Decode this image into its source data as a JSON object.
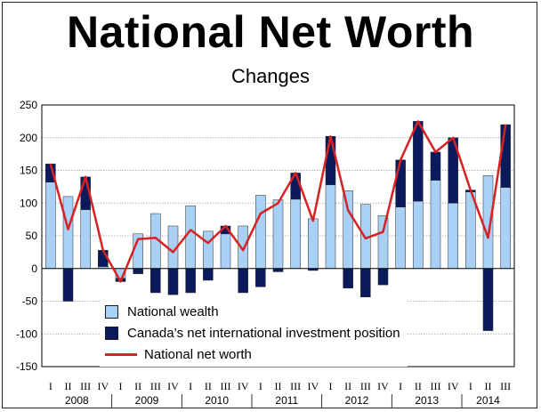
{
  "page": {
    "title": "National Net Worth",
    "subtitle": "Changes"
  },
  "colors": {
    "wealth": "#a9d0f5",
    "niip": "#0a1a5c",
    "net_worth_line": "#d62222",
    "grid": "#9a9a9a",
    "axis": "#000000"
  },
  "chart_data": {
    "type": "bar",
    "stacked": true,
    "ylim": [
      -150,
      250
    ],
    "yticks": [
      -150,
      -100,
      -50,
      0,
      50,
      100,
      150,
      200,
      250
    ],
    "grid": true,
    "legend_position": "bottom-left",
    "x": [
      "2008 I",
      "2008 II",
      "2008 III",
      "2008 IV",
      "2009 I",
      "2009 II",
      "2009 III",
      "2009 IV",
      "2010 I",
      "2010 II",
      "2010 III",
      "2010 IV",
      "2011 I",
      "2011 II",
      "2011 III",
      "2011 IV",
      "2012 I",
      "2012 II",
      "2012 III",
      "2012 IV",
      "2013 I",
      "2013 II",
      "2013 III",
      "2013 IV",
      "2014 I",
      "2014 II",
      "2014 III"
    ],
    "quarter_labels": [
      "I",
      "II",
      "III",
      "IV",
      "I",
      "II",
      "III",
      "IV",
      "I",
      "II",
      "III",
      "IV",
      "I",
      "II",
      "III",
      "IV",
      "I",
      "II",
      "III",
      "IV",
      "I",
      "II",
      "III",
      "IV",
      "I",
      "II",
      "III"
    ],
    "year_labels": [
      {
        "label": "2008",
        "start": 0,
        "count": 4
      },
      {
        "label": "2009",
        "start": 4,
        "count": 4
      },
      {
        "label": "2010",
        "start": 8,
        "count": 4
      },
      {
        "label": "2011",
        "start": 12,
        "count": 4
      },
      {
        "label": "2012",
        "start": 16,
        "count": 4
      },
      {
        "label": "2013",
        "start": 20,
        "count": 4
      },
      {
        "label": "2014",
        "start": 24,
        "count": 3
      }
    ],
    "series": [
      {
        "name": "National wealth",
        "type": "bar",
        "values": [
          132,
          110,
          90,
          3,
          -15,
          53,
          84,
          65,
          96,
          57,
          53,
          65,
          112,
          105,
          106,
          76,
          128,
          119,
          98,
          81,
          94,
          103,
          135,
          100,
          117,
          142,
          124
        ]
      },
      {
        "name": "Canada’s net international investment position",
        "type": "bar",
        "values": [
          28,
          -50,
          50,
          25,
          -5,
          -8,
          -37,
          -40,
          -37,
          -18,
          12,
          -37,
          -28,
          -5,
          40,
          -3,
          74,
          -30,
          -52,
          -25,
          72,
          122,
          43,
          100,
          3,
          -95,
          96
        ]
      },
      {
        "name": "National net worth",
        "type": "line",
        "values": [
          160,
          60,
          140,
          28,
          -20,
          45,
          47,
          25,
          59,
          39,
          65,
          28,
          84,
          100,
          146,
          73,
          202,
          89,
          46,
          56,
          166,
          225,
          178,
          200,
          120,
          47,
          220
        ]
      }
    ]
  }
}
